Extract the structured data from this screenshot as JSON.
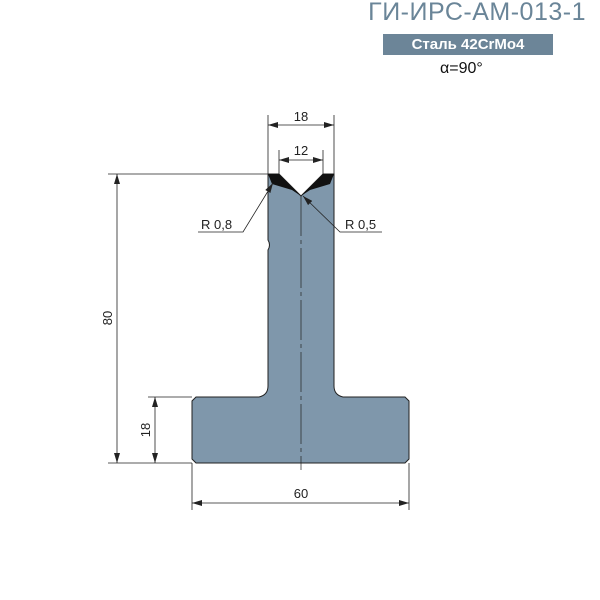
{
  "header": {
    "title": "ГИ-ИРС-АМ-013-1",
    "material": "Сталь 42CrMo4",
    "angle": "α=90°"
  },
  "drawing": {
    "fill_color": "#7f97ab",
    "dimensions": {
      "top_width": "18",
      "v_opening": "12",
      "height": "80",
      "base_height": "18",
      "base_width": "60",
      "radius_left": "R 0,8",
      "radius_right": "R 0,5"
    }
  }
}
